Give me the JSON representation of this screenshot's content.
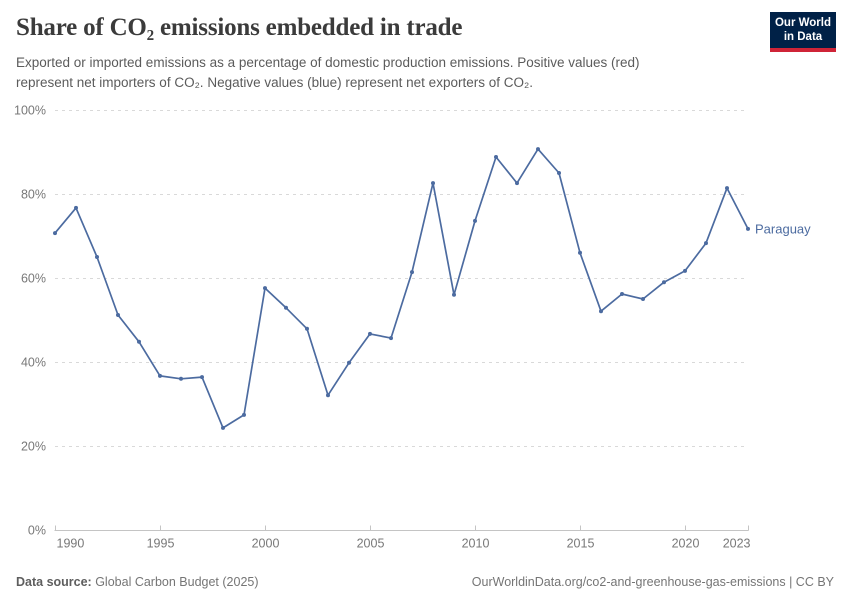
{
  "header": {
    "title": "Share of CO₂ emissions embedded in trade",
    "subtitle_lines": [
      "Exported or imported emissions as a percentage of domestic production emissions. Positive values (red)",
      "represent net importers of CO₂. Negative values (blue) represent net exporters of CO₂."
    ]
  },
  "logo": {
    "line1": "Our World",
    "line2": "in Data",
    "bg_color": "#002147",
    "stripe_color": "#cf2437"
  },
  "chart_data": {
    "type": "line",
    "title": "Share of CO₂ emissions embedded in trade",
    "xlabel": "",
    "ylabel": "",
    "xlim": [
      1990,
      2023
    ],
    "ylim": [
      0,
      100
    ],
    "grid": "horizontal-dashed",
    "x_ticks": [
      1990,
      1995,
      2000,
      2005,
      2010,
      2015,
      2020,
      2023
    ],
    "x_tick_labels": [
      "1990",
      "1995",
      "2000",
      "2005",
      "2010",
      "2015",
      "2020",
      "2023"
    ],
    "y_ticks": [
      0,
      20,
      40,
      60,
      80,
      100
    ],
    "y_tick_labels": [
      "0%",
      "20%",
      "40%",
      "60%",
      "80%",
      "100%"
    ],
    "series": [
      {
        "name": "Paraguay",
        "color": "#4c6ba0",
        "x": [
          1990,
          1991,
          1992,
          1993,
          1994,
          1995,
          1996,
          1997,
          1998,
          1999,
          2000,
          2001,
          2002,
          2003,
          2004,
          2005,
          2006,
          2007,
          2008,
          2009,
          2010,
          2011,
          2012,
          2013,
          2014,
          2015,
          2016,
          2017,
          2018,
          2019,
          2020,
          2021,
          2022,
          2023
        ],
        "values": [
          70.7,
          76.7,
          65.0,
          51.2,
          44.8,
          36.7,
          36.0,
          36.4,
          24.3,
          27.4,
          57.6,
          52.9,
          47.9,
          32.1,
          39.8,
          46.7,
          45.7,
          61.4,
          82.6,
          56.0,
          73.6,
          88.8,
          82.6,
          90.7,
          85.0,
          66.0,
          52.1,
          56.2,
          55.0,
          59.0,
          61.7,
          68.3,
          81.4,
          71.7
        ]
      }
    ],
    "end_label": "Paraguay"
  },
  "footer": {
    "source_label": "Data source:",
    "source_value": " Global Carbon Budget (2025)",
    "link_text": "OurWorldinData.org/co2-and-greenhouse-gas-emissions",
    "license_text": " | CC BY"
  },
  "colors": {
    "line": "#4c6ba0",
    "gridline": "#d9d9d9",
    "axis": "#c4c4c4",
    "tick_label": "#787878",
    "title_text": "#3b3b3b",
    "subtitle_text": "#5b5b5b"
  }
}
